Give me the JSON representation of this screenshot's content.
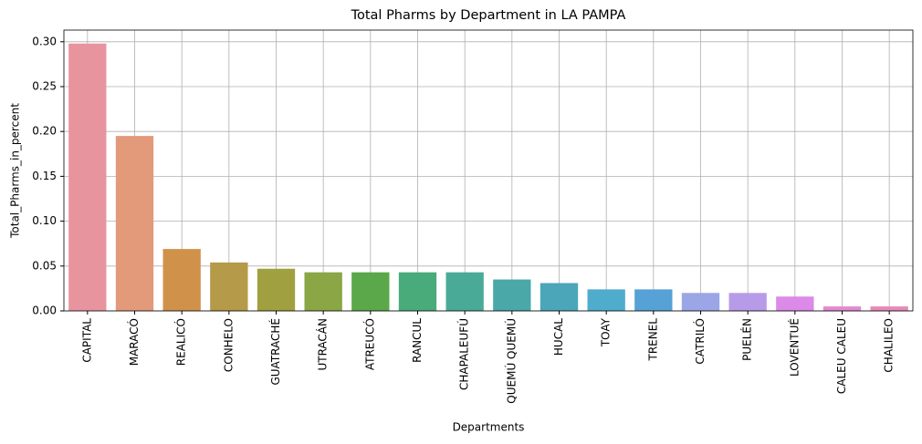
{
  "chart_data": {
    "type": "bar",
    "title": "Total Pharms by Department in LA PAMPA",
    "x_label": "Departments",
    "y_label": "Total_Pharms_in_percent",
    "categories": [
      "CAPITAL",
      "MARACÓ",
      "REALICÓ",
      "CONHELO",
      "GUATRACHÉ",
      "UTRACÁN",
      "ATREUCÓ",
      "RANCUL",
      "CHAPALEUFÚ",
      "QUEMÚ QUEMÚ",
      "HUCAL",
      "TOAY",
      "TRENEL",
      "CATRILÓ",
      "PUELÉN",
      "LOVENTUÉ",
      "CALEU CALEU",
      "CHALILEO"
    ],
    "values": [
      0.298,
      0.195,
      0.069,
      0.054,
      0.047,
      0.043,
      0.043,
      0.043,
      0.043,
      0.035,
      0.031,
      0.024,
      0.024,
      0.02,
      0.02,
      0.016,
      0.005,
      0.005
    ],
    "colors": [
      "#e8949f",
      "#e39a7a",
      "#d0924a",
      "#b59a4a",
      "#a0a040",
      "#8aa645",
      "#5aa84a",
      "#4aab7a",
      "#49ab97",
      "#4aa8a8",
      "#4aa6b8",
      "#4faccd",
      "#56a2d6",
      "#9aa6e6",
      "#b79be8",
      "#dc8ae8",
      "#e48ad0",
      "#e88ab8"
    ],
    "ylim": [
      0,
      0.313
    ],
    "yticks": [
      {
        "value": 0,
        "label": "0.00"
      },
      {
        "value": 0.05,
        "label": "0.05"
      },
      {
        "value": 0.1,
        "label": "0.10"
      },
      {
        "value": 0.15,
        "label": "0.15"
      },
      {
        "value": 0.2,
        "label": "0.20"
      },
      {
        "value": 0.25,
        "label": "0.25"
      },
      {
        "value": 0.3,
        "label": "0.30"
      }
    ],
    "grid": true
  }
}
